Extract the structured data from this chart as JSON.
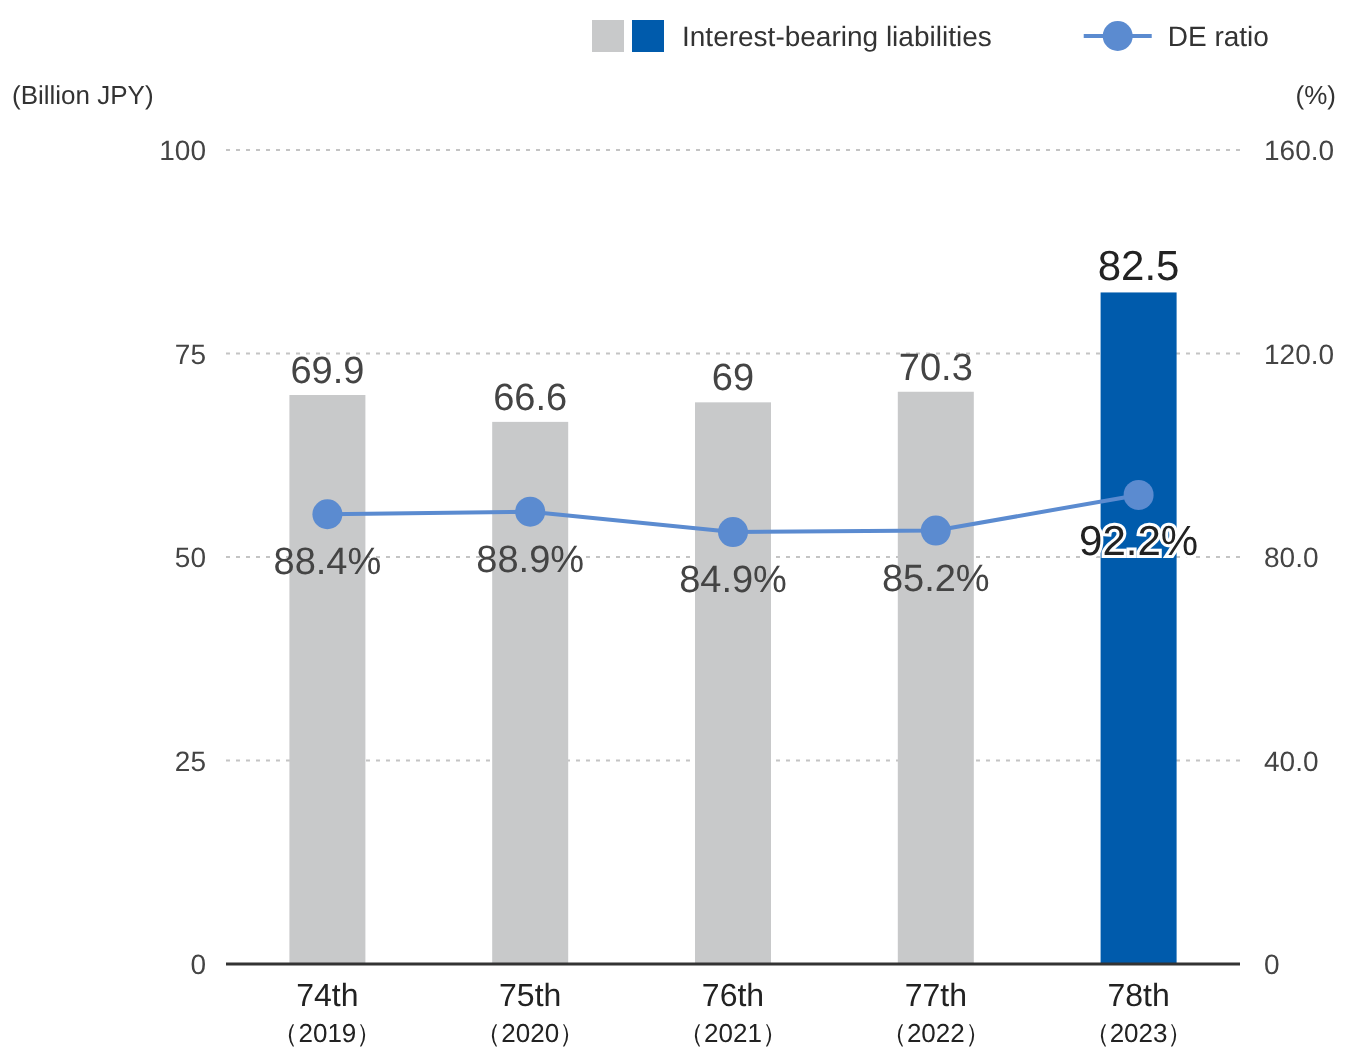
{
  "chart_data": {
    "type": "bar",
    "categories": [
      "74th\n（2019）",
      "75th\n（2020）",
      "76th\n（2021）",
      "77th\n（2022）",
      "78th\n（2023）"
    ],
    "ylabel": "(Billion JPY)",
    "y2label": "(%)",
    "ylim": [
      0,
      100
    ],
    "yticks": [
      0,
      25,
      50,
      75,
      100
    ],
    "y2lim": [
      0,
      160
    ],
    "y2ticks": [
      0,
      {
        "value": 40,
        "label": "40.0"
      },
      {
        "value": 80,
        "label": "80.0"
      },
      {
        "value": 120,
        "label": "120.0"
      },
      {
        "value": 160,
        "label": "160.0"
      }
    ],
    "grid": "y",
    "legend": "top right",
    "series": [
      {
        "name": "Interest-bearing liabilities",
        "colors": [
          "#c8c9ca",
          "#c8c9ca",
          "#c8c9ca",
          "#c8c9ca",
          "#005bac"
        ],
        "values": [
          69.9,
          66.6,
          69,
          70.3,
          82.5
        ],
        "value_labels": [
          "69.9",
          "66.6",
          "69",
          "70.3",
          "82.5"
        ]
      },
      {
        "name": "DE ratio",
        "type": "line",
        "axis": "y2",
        "color": "#5b8bd0",
        "marker": "circle",
        "values": [
          88.4,
          88.9,
          84.9,
          85.2,
          92.2
        ],
        "value_labels": [
          "88.4%",
          "88.9%",
          "84.9%",
          "85.2%",
          "92.2%"
        ]
      }
    ]
  }
}
